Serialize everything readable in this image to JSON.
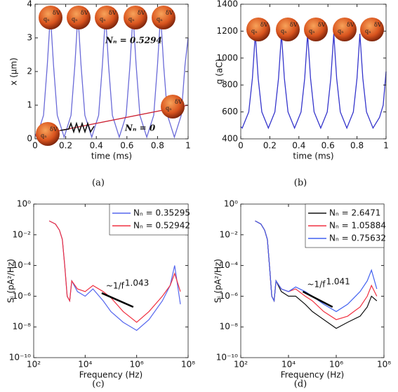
{
  "chart_data": [
    {
      "type": "line",
      "caption": "(a)",
      "xlabel": "time (ms)",
      "ylabel": "x (μm)",
      "xlim": [
        0,
        1
      ],
      "xticks": [
        0,
        0.2,
        0.4,
        0.6,
        0.8,
        1
      ],
      "ylim": [
        0,
        4
      ],
      "yticks": [
        0,
        1,
        2,
        3,
        4
      ],
      "ball_labels": [
        "δV",
        "qₙ"
      ],
      "annotations": [
        "Nₙ = 0.5294",
        "Nₙ = 0"
      ],
      "x": [
        0,
        0.01,
        0.055,
        0.08,
        0.1,
        0.12,
        0.145,
        0.19,
        0.235,
        0.26,
        0.28,
        0.3,
        0.325,
        0.37,
        0.415,
        0.44,
        0.46,
        0.48,
        0.505,
        0.55,
        0.595,
        0.62,
        0.64,
        0.66,
        0.685,
        0.73,
        0.775,
        0.8,
        0.82,
        0.84,
        0.865,
        0.91,
        0.955,
        0.98,
        1
      ],
      "series": [
        {
          "color": "#6a6ad8",
          "values": [
            0.15,
            0.05,
            0.7,
            2.2,
            3.7,
            2.2,
            0.7,
            0.05,
            0.7,
            2.2,
            3.7,
            2.2,
            0.7,
            0.05,
            0.7,
            2.2,
            3.7,
            2.2,
            0.7,
            0.05,
            0.7,
            2.2,
            3.7,
            2.2,
            0.7,
            0.05,
            0.7,
            2.2,
            3.7,
            2.2,
            0.7,
            0.05,
            0.7,
            2.2,
            3.0
          ]
        },
        {
          "color": "#cc2233",
          "x": [
            0,
            1
          ],
          "values": [
            0.1,
            1.0
          ]
        }
      ]
    },
    {
      "type": "line",
      "caption": "(b)",
      "xlabel": "time (ms)",
      "ylabel": "q (aC)",
      "xlim": [
        0,
        1
      ],
      "xticks": [
        0,
        0.2,
        0.4,
        0.6,
        0.8,
        1
      ],
      "ylim": [
        400,
        1400
      ],
      "yticks": [
        400,
        600,
        800,
        1000,
        1200,
        1400
      ],
      "ball_labels": [
        "δV",
        "qₙ"
      ],
      "x": [
        0,
        0.01,
        0.055,
        0.08,
        0.1,
        0.12,
        0.145,
        0.19,
        0.235,
        0.26,
        0.28,
        0.3,
        0.325,
        0.37,
        0.415,
        0.44,
        0.46,
        0.48,
        0.505,
        0.55,
        0.595,
        0.62,
        0.64,
        0.66,
        0.685,
        0.73,
        0.775,
        0.8,
        0.82,
        0.84,
        0.865,
        0.91,
        0.955,
        0.98,
        1
      ],
      "series": [
        {
          "color": "#3535cc",
          "values": [
            490,
            480,
            600,
            850,
            1180,
            850,
            600,
            480,
            600,
            850,
            1180,
            850,
            600,
            480,
            600,
            850,
            1180,
            850,
            600,
            480,
            600,
            850,
            1180,
            850,
            600,
            480,
            600,
            850,
            1180,
            850,
            600,
            480,
            560,
            650,
            900
          ]
        }
      ]
    },
    {
      "type": "line",
      "log": true,
      "caption": "(c)",
      "xlabel": "Frequency (Hz)",
      "ylabel": "Sᵢ (pA²/Hz)",
      "legend": "upper right",
      "xlim": [
        100,
        100000000
      ],
      "xticks": [
        {
          "value": 100,
          "label": "10²"
        },
        {
          "value": 10000,
          "label": "10⁴"
        },
        {
          "value": 1000000,
          "label": "10⁶"
        },
        {
          "value": 100000000,
          "label": "10⁸"
        }
      ],
      "ylim": [
        1e-10,
        1
      ],
      "yticks": [
        {
          "value": 1,
          "label": "10⁰"
        },
        {
          "value": 0.01,
          "label": "10⁻²"
        },
        {
          "value": 0.0001,
          "label": "10⁻⁴"
        },
        {
          "value": 1e-06,
          "label": "10⁻⁶"
        },
        {
          "value": 1e-08,
          "label": "10⁻⁸"
        },
        {
          "value": 1e-10,
          "label": "10⁻¹⁰"
        }
      ],
      "fit_line": {
        "x": [
          44000,
          740000
        ],
        "values": [
          1.6e-06,
          2e-07
        ],
        "annotation": "~1/f",
        "exponent": "1.043"
      },
      "x": [
        400,
        700,
        1000,
        1300,
        1600,
        2000,
        2500,
        3000,
        5000,
        10000,
        20000,
        50000,
        100000,
        300000,
        1000000,
        3000000,
        10000000,
        20000000,
        30000000,
        50000000
      ],
      "series": [
        {
          "name": "Nₙ = 0.35295",
          "color": "#5566ee",
          "values": [
            0.08,
            0.05,
            0.02,
            0.005,
            0.0001,
            1e-06,
            5e-07,
            1e-05,
            2e-06,
            1e-06,
            3e-06,
            5e-07,
            1e-07,
            2e-08,
            6e-09,
            3e-08,
            5e-07,
            5e-06,
            0.0001,
            3e-07
          ]
        },
        {
          "name": "Nₙ = 0.52942",
          "color": "#f03040",
          "values": [
            0.08,
            0.05,
            0.02,
            0.005,
            0.0001,
            1e-06,
            5e-07,
            1e-05,
            3e-06,
            2e-06,
            5e-06,
            2e-06,
            8e-07,
            1e-07,
            2e-08,
            1e-07,
            1e-06,
            5e-06,
            3e-05,
            2e-06
          ]
        }
      ]
    },
    {
      "type": "line",
      "log": true,
      "caption": "(d)",
      "xlabel": "Frequency (Hz)",
      "ylabel": "Sᵢ (pA²/Hz)",
      "legend": "upper right",
      "xlim": [
        100,
        100000000
      ],
      "xticks": [
        {
          "value": 100,
          "label": "10²"
        },
        {
          "value": 10000,
          "label": "10⁴"
        },
        {
          "value": 1000000,
          "label": "10⁶"
        },
        {
          "value": 100000000,
          "label": "10⁸"
        }
      ],
      "ylim": [
        1e-10,
        1
      ],
      "yticks": [
        {
          "value": 1,
          "label": "10⁰"
        },
        {
          "value": 0.01,
          "label": "10⁻²"
        },
        {
          "value": 0.0001,
          "label": "10⁻⁴"
        },
        {
          "value": 1e-06,
          "label": "10⁻⁶"
        },
        {
          "value": 1e-08,
          "label": "10⁻⁸"
        },
        {
          "value": 1e-10,
          "label": "10⁻¹⁰"
        }
      ],
      "fit_line": {
        "x": [
          40000,
          700000
        ],
        "values": [
          2e-06,
          2e-07
        ],
        "annotation": "~1/f",
        "exponent": "1.041"
      },
      "x": [
        400,
        700,
        1000,
        1300,
        1600,
        2000,
        2500,
        3000,
        5000,
        10000,
        20000,
        50000,
        100000,
        300000,
        1000000,
        3000000,
        10000000,
        20000000,
        30000000,
        50000000
      ],
      "series": [
        {
          "name": "Nₙ = 2.6471",
          "color": "#111111",
          "values": [
            0.08,
            0.05,
            0.02,
            0.005,
            0.0001,
            1e-06,
            5e-07,
            1e-05,
            2e-06,
            1e-06,
            1e-06,
            3e-07,
            1e-07,
            3e-08,
            8e-09,
            2e-08,
            5e-08,
            2e-07,
            1e-06,
            5e-07
          ]
        },
        {
          "name": "Nₙ = 1.05884",
          "color": "#f03040",
          "values": [
            0.08,
            0.05,
            0.02,
            0.005,
            0.0001,
            1e-06,
            5e-07,
            1e-05,
            3e-06,
            2e-06,
            3e-06,
            1e-06,
            5e-07,
            1e-07,
            3e-08,
            5e-08,
            2e-07,
            1e-06,
            5e-06,
            1e-06
          ]
        },
        {
          "name": "Nₙ = 0.75632",
          "color": "#4060f0",
          "values": [
            0.08,
            0.05,
            0.02,
            0.005,
            0.0001,
            1e-06,
            5e-07,
            1e-05,
            3e-06,
            2e-06,
            4e-06,
            2e-06,
            1e-06,
            3e-07,
            1e-07,
            3e-07,
            2e-06,
            1e-05,
            5e-05,
            3e-06
          ]
        }
      ]
    }
  ]
}
